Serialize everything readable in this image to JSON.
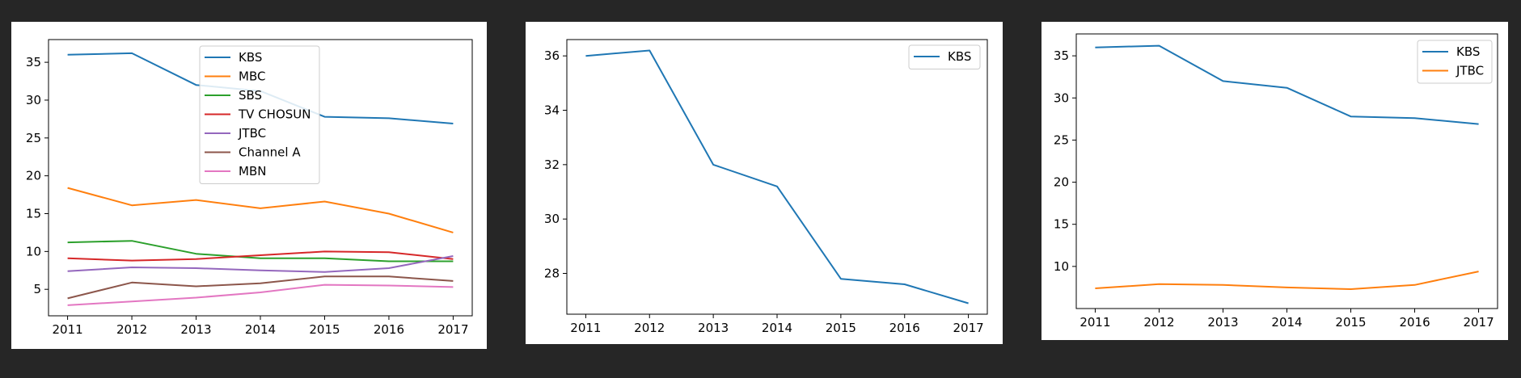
{
  "background_color": "#262626",
  "panel_color": "#ffffff",
  "chart_data": [
    {
      "type": "line",
      "x": [
        2011,
        2012,
        2013,
        2014,
        2015,
        2016,
        2017
      ],
      "x_ticks": [
        "2011",
        "2012",
        "2013",
        "2014",
        "2015",
        "2016",
        "2017"
      ],
      "y_ticks": [
        5,
        10,
        15,
        20,
        25,
        30,
        35
      ],
      "ylim": [
        1.5,
        38.0
      ],
      "grid": false,
      "legend_position": "top-center",
      "series": [
        {
          "name": "KBS",
          "color": "#1f77b4",
          "values": [
            36.0,
            36.2,
            32.0,
            31.2,
            27.8,
            27.6,
            26.9
          ]
        },
        {
          "name": "MBC",
          "color": "#ff7f0e",
          "values": [
            18.4,
            16.1,
            16.8,
            15.7,
            16.6,
            15.0,
            12.5
          ]
        },
        {
          "name": "SBS",
          "color": "#2ca02c",
          "values": [
            11.2,
            11.4,
            9.7,
            9.1,
            9.1,
            8.7,
            8.7
          ]
        },
        {
          "name": "TV CHOSUN",
          "color": "#d62728",
          "values": [
            9.1,
            8.8,
            9.0,
            9.5,
            10.0,
            9.9,
            9.0
          ]
        },
        {
          "name": "JTBC",
          "color": "#9467bd",
          "values": [
            7.4,
            7.9,
            7.8,
            7.5,
            7.3,
            7.8,
            9.4
          ]
        },
        {
          "name": "Channel A",
          "color": "#8c564b",
          "values": [
            3.8,
            5.9,
            5.4,
            5.8,
            6.7,
            6.7,
            6.1
          ]
        },
        {
          "name": "MBN",
          "color": "#e377c2",
          "values": [
            2.9,
            3.4,
            3.9,
            4.6,
            5.6,
            5.5,
            5.3
          ]
        }
      ]
    },
    {
      "type": "line",
      "x": [
        2011,
        2012,
        2013,
        2014,
        2015,
        2016,
        2017
      ],
      "x_ticks": [
        "2011",
        "2012",
        "2013",
        "2014",
        "2015",
        "2016",
        "2017"
      ],
      "y_ticks": [
        28,
        30,
        32,
        34,
        36
      ],
      "ylim": [
        26.5,
        36.6
      ],
      "grid": false,
      "legend_position": "top-right",
      "series": [
        {
          "name": "KBS",
          "color": "#1f77b4",
          "values": [
            36.0,
            36.2,
            32.0,
            31.2,
            27.8,
            27.6,
            26.9
          ]
        }
      ]
    },
    {
      "type": "line",
      "x": [
        2011,
        2012,
        2013,
        2014,
        2015,
        2016,
        2017
      ],
      "x_ticks": [
        "2011",
        "2012",
        "2013",
        "2014",
        "2015",
        "2016",
        "2017"
      ],
      "y_ticks": [
        10,
        15,
        20,
        25,
        30,
        35
      ],
      "ylim": [
        5.0,
        37.6
      ],
      "grid": false,
      "legend_position": "top-right",
      "series": [
        {
          "name": "KBS",
          "color": "#1f77b4",
          "values": [
            36.0,
            36.2,
            32.0,
            31.2,
            27.8,
            27.6,
            26.9
          ]
        },
        {
          "name": "JTBC",
          "color": "#ff7f0e",
          "values": [
            7.4,
            7.9,
            7.8,
            7.5,
            7.3,
            7.8,
            9.4
          ]
        }
      ]
    }
  ]
}
